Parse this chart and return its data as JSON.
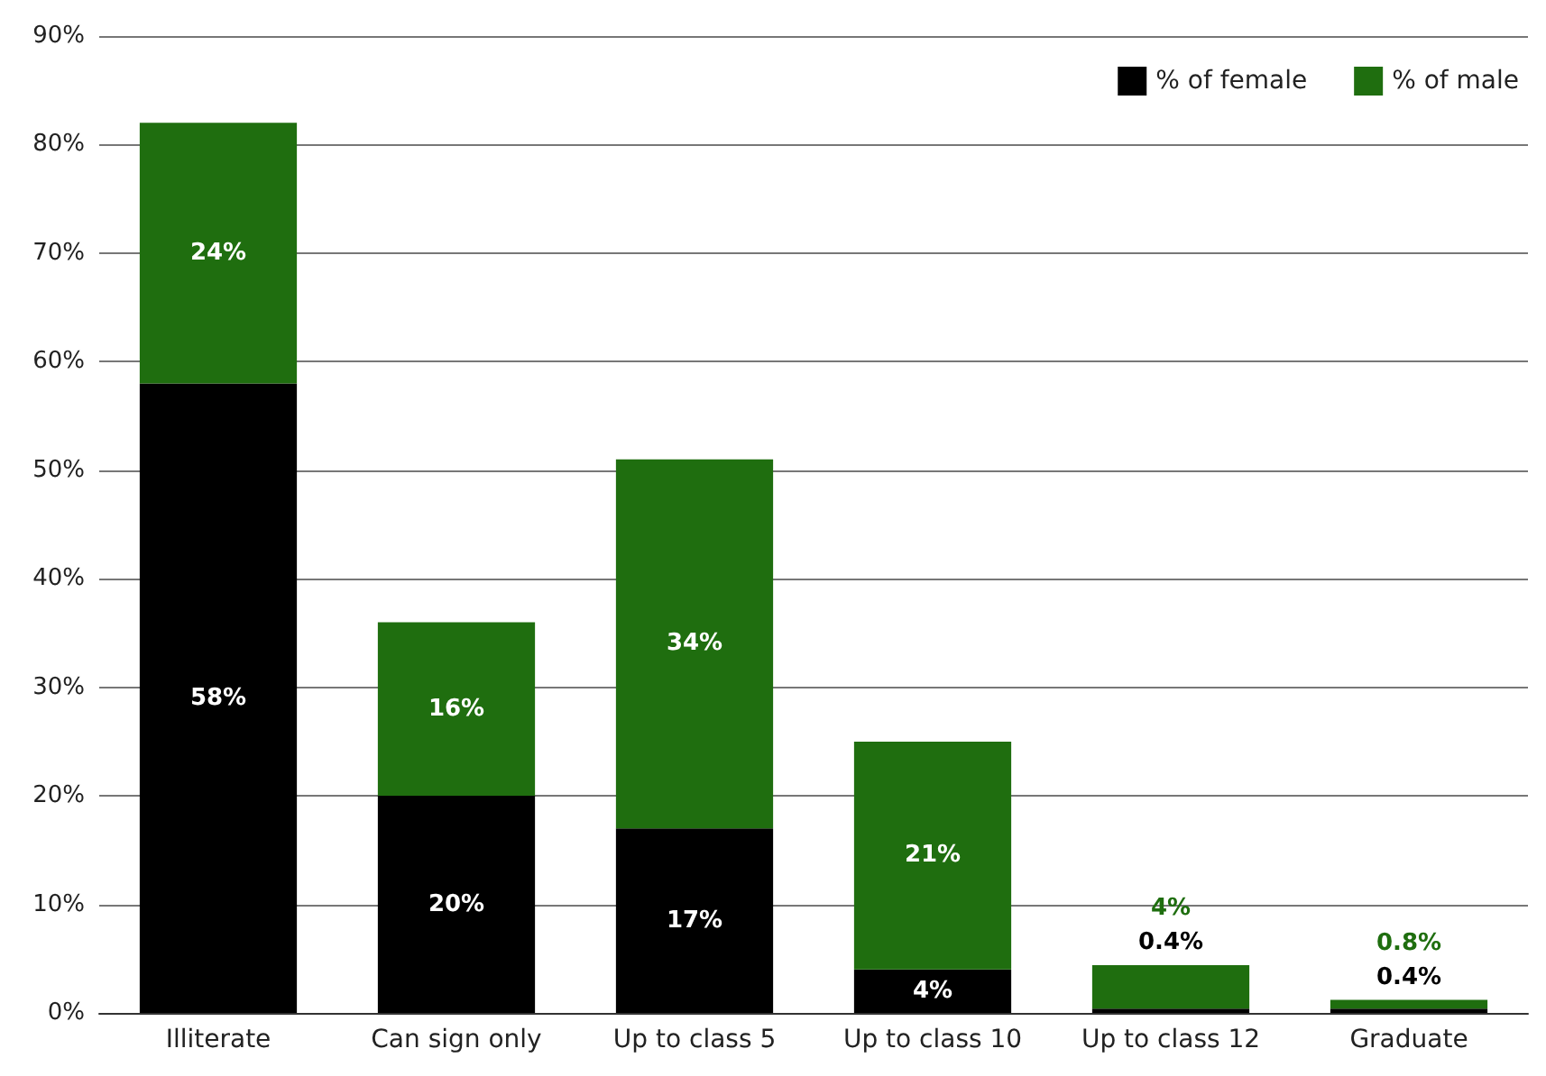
{
  "chart_data": {
    "type": "bar",
    "stacked": true,
    "categories": [
      "Illiterate",
      "Can sign only",
      "Up to class 5",
      "Up to class 10",
      "Up to class 12",
      "Graduate"
    ],
    "series": [
      {
        "name": "% of female",
        "color": "#000000",
        "values": [
          58,
          20,
          17,
          4,
          0.4,
          0.4
        ],
        "value_labels": [
          "58%",
          "20%",
          "17%",
          "4%",
          "0.4%",
          "0.4%"
        ]
      },
      {
        "name": "% of male",
        "color": "#1f6e0f",
        "values": [
          24,
          16,
          34,
          21,
          4,
          0.8
        ],
        "value_labels": [
          "24%",
          "16%",
          "34%",
          "21%",
          "4%",
          "0.8%"
        ]
      }
    ],
    "ylim": [
      0,
      90
    ],
    "yticks": [
      {
        "value": 0,
        "label": "0%"
      },
      {
        "value": 10,
        "label": "10%"
      },
      {
        "value": 20,
        "label": "20%"
      },
      {
        "value": 30,
        "label": "30%"
      },
      {
        "value": 40,
        "label": "40%"
      },
      {
        "value": 50,
        "label": "50%"
      },
      {
        "value": 60,
        "label": "60%"
      },
      {
        "value": 70,
        "label": "70%"
      },
      {
        "value": 80,
        "label": "80%"
      },
      {
        "value": 90,
        "label": "90%"
      }
    ],
    "grid": "y",
    "legend": "top right"
  }
}
